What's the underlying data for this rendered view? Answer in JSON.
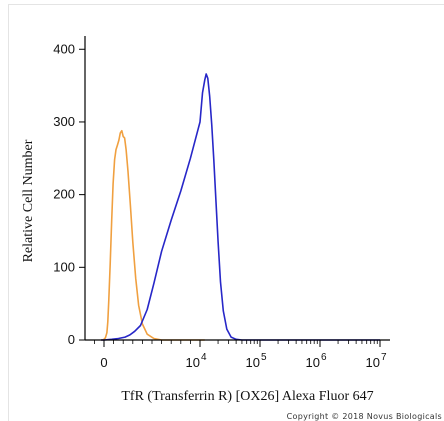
{
  "chart_data": {
    "type": "line",
    "title": "",
    "xlabel": "TfR (Transferrin R) [OX26] Alexa Fluor 647",
    "ylabel": "Relative Cell Number",
    "x_scale": "biexponential",
    "xlim": [
      -300,
      10000000
    ],
    "ylim": [
      0,
      410
    ],
    "y_ticks": [
      0,
      100,
      200,
      300,
      400
    ],
    "x_ticks": [
      {
        "value": 0,
        "base": "0",
        "exp": ""
      },
      {
        "value": 10000,
        "base": "10",
        "exp": "4"
      },
      {
        "value": 100000,
        "base": "10",
        "exp": "5"
      },
      {
        "value": 1000000,
        "base": "10",
        "exp": "6"
      },
      {
        "value": 10000000,
        "base": "10",
        "exp": "7"
      }
    ],
    "grid": false,
    "legend": "none",
    "series": [
      {
        "color": "#f0a040",
        "points": [
          [
            -300,
            0
          ],
          [
            -150,
            0
          ],
          [
            0,
            1
          ],
          [
            150,
            3
          ],
          [
            300,
            10
          ],
          [
            400,
            25
          ],
          [
            500,
            55
          ],
          [
            650,
            105
          ],
          [
            800,
            165
          ],
          [
            950,
            215
          ],
          [
            1100,
            248
          ],
          [
            1250,
            262
          ],
          [
            1400,
            268
          ],
          [
            1550,
            275
          ],
          [
            1700,
            285
          ],
          [
            1850,
            288
          ],
          [
            2000,
            280
          ],
          [
            2150,
            278
          ],
          [
            2300,
            262
          ],
          [
            2500,
            232
          ],
          [
            2750,
            185
          ],
          [
            3000,
            135
          ],
          [
            3300,
            85
          ],
          [
            3600,
            48
          ],
          [
            4000,
            22
          ],
          [
            4500,
            8
          ],
          [
            5200,
            2
          ],
          [
            6000,
            0
          ],
          [
            8000,
            0
          ],
          [
            12000,
            0
          ]
        ]
      },
      {
        "color": "#2727c8",
        "points": [
          [
            -300,
            0
          ],
          [
            0,
            0
          ],
          [
            800,
            1
          ],
          [
            1500,
            2
          ],
          [
            2200,
            4
          ],
          [
            2700,
            7
          ],
          [
            3200,
            12
          ],
          [
            3800,
            20
          ],
          [
            4500,
            42
          ],
          [
            5200,
            78
          ],
          [
            6000,
            122
          ],
          [
            7000,
            165
          ],
          [
            8000,
            205
          ],
          [
            9000,
            250
          ],
          [
            10000,
            300
          ],
          [
            11000,
            340
          ],
          [
            12000,
            358
          ],
          [
            12700,
            366
          ],
          [
            13500,
            360
          ],
          [
            14500,
            335
          ],
          [
            15700,
            295
          ],
          [
            17000,
            248
          ],
          [
            18500,
            190
          ],
          [
            20000,
            135
          ],
          [
            22000,
            80
          ],
          [
            24500,
            40
          ],
          [
            28000,
            15
          ],
          [
            33000,
            4
          ],
          [
            40000,
            1
          ],
          [
            50000,
            0
          ],
          [
            200000,
            0
          ],
          [
            10000000,
            0
          ]
        ]
      }
    ]
  },
  "footer": {
    "copyright": "Copyright © 2018 Novus Biologicals"
  }
}
